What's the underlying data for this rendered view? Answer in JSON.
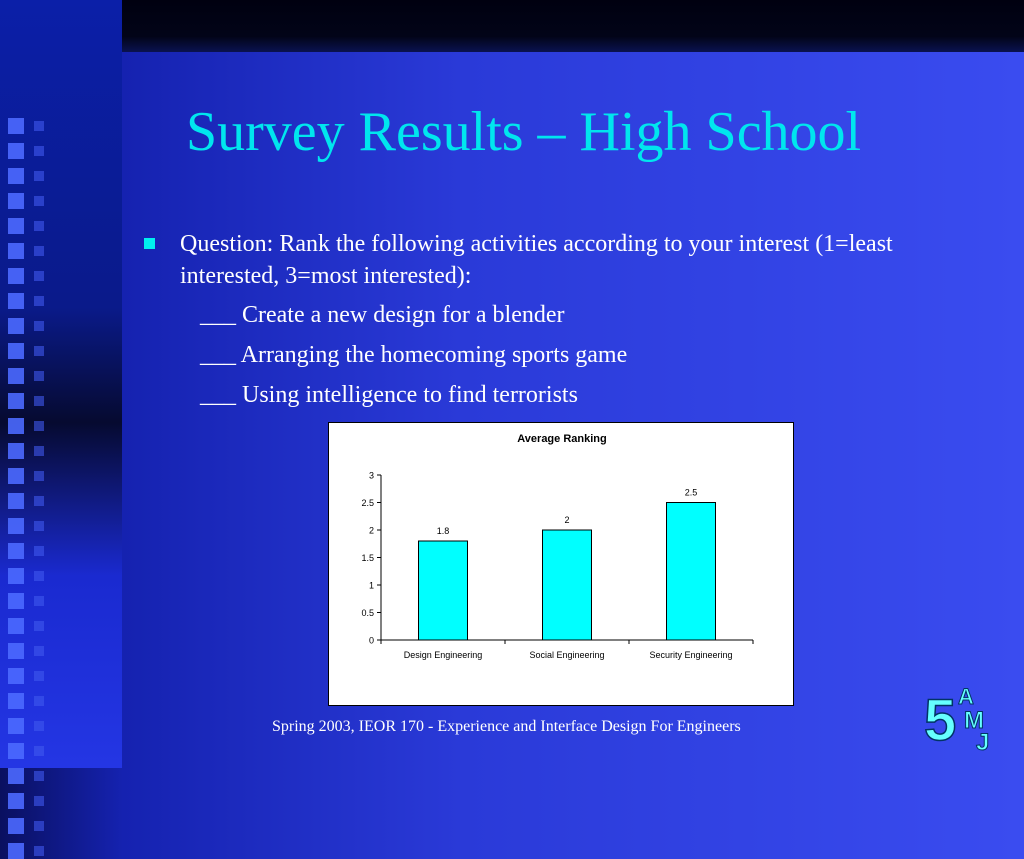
{
  "slide": {
    "title": "Survey Results – High School",
    "question": "Question: Rank the following activities according to your interest (1=least interested, 3=most interested):",
    "options": [
      "___ Create a new design for a blender",
      "___ Arranging the homecoming sports game",
      "___ Using intelligence to find terrorists"
    ],
    "footer": "Spring 2003, IEOR 170 - Experience and Interface Design For Engineers",
    "logo_text": {
      "number": "5",
      "letter1": "A",
      "letter2": "M",
      "letter3": "J"
    }
  },
  "colors": {
    "title": "#00e6ee",
    "bar": "#00ffff",
    "bullet": "#00f0f0"
  },
  "chart_data": {
    "type": "bar",
    "title": "Average Ranking",
    "categories": [
      "Design Engineering",
      "Social Engineering",
      "Security Engineering"
    ],
    "values": [
      1.8,
      2,
      2.5
    ],
    "data_labels": [
      "1.8",
      "2",
      "2.5"
    ],
    "yticks": [
      "0",
      "0.5",
      "1",
      "1.5",
      "2",
      "2.5",
      "3"
    ],
    "ylim": [
      0,
      3
    ],
    "grid": false,
    "legend": "none",
    "xlabel": "",
    "ylabel": ""
  }
}
